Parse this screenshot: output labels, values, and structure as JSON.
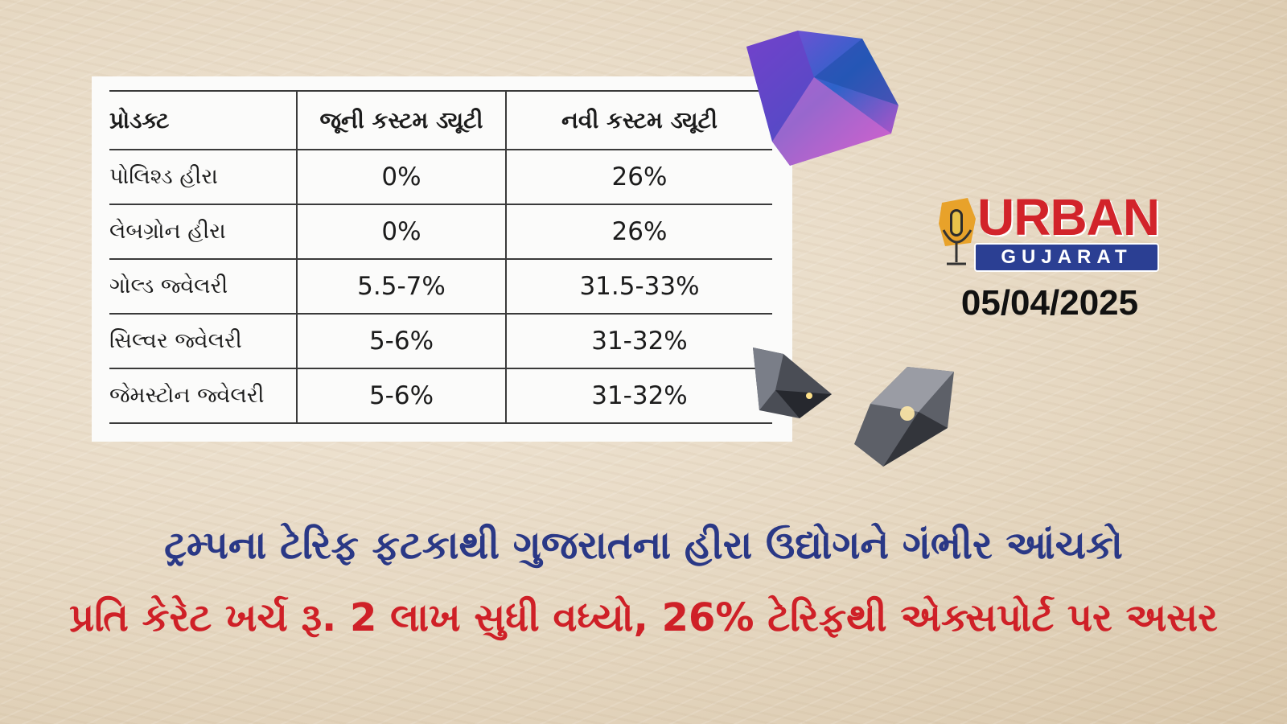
{
  "table": {
    "headers": [
      "પ્રોડક્ટ",
      "જૂની કસ્ટમ ડ્યૂટી",
      "નવી કસ્ટમ ડ્યૂટી"
    ],
    "rows": [
      [
        "પોલિશ્ડ હીરા",
        "0%",
        "26%"
      ],
      [
        "લેબગ્રોન હીરા",
        "0%",
        "26%"
      ],
      [
        "ગોલ્ડ જ્વેલરી",
        "5.5-7%",
        "31.5-33%"
      ],
      [
        "સિલ્વર જ્વેલરી",
        "5-6%",
        "31-32%"
      ],
      [
        "જેમસ્ટોન જ્વેલરી",
        "5-6%",
        "31-32%"
      ]
    ]
  },
  "logo": {
    "word1": "URBAN",
    "word2": "GUJARAT"
  },
  "date": "05/04/2025",
  "headline": "ટ્રમ્પના ટેરિફ ફટકાથી ગુજરાતના હીરા ઉદ્યોગને ગંભીર આંચકો",
  "subheadline": "પ્રતિ કેરેટ ખર્ચ રૂ. 2 લાખ સુધી વધ્યો, 26% ટેરિફથી એક્સપોર્ટ પર અસર",
  "colors": {
    "headline": "#2a3886",
    "subheadline": "#cf2027",
    "brand_red": "#d2232a",
    "brand_blue": "#2b3f93"
  }
}
